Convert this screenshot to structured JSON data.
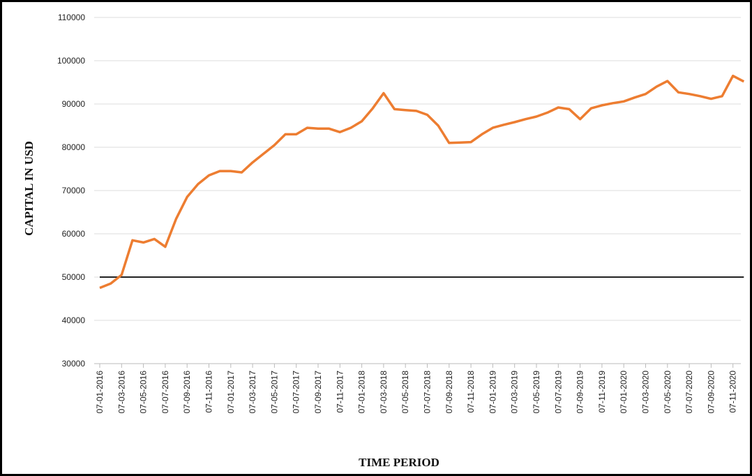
{
  "chart_data": {
    "type": "line",
    "y_label": "CAPITAL IN USD",
    "x_label": "TIME PERIOD",
    "categories": [
      "07-01-2016",
      null,
      "07-03-2016",
      null,
      "07-05-2016",
      null,
      "07-07-2016",
      null,
      "07-09-2016",
      null,
      "07-11-2016",
      null,
      "07-01-2017",
      null,
      "07-03-2017",
      null,
      "07-05-2017",
      null,
      "07-07-2017",
      null,
      "07-09-2017",
      null,
      "07-11-2017",
      null,
      "07-01-2018",
      null,
      "07-03-2018",
      null,
      "07-05-2018",
      null,
      "07-07-2018",
      null,
      "07-09-2018",
      null,
      "07-11-2018",
      null,
      "07-01-2019",
      null,
      "07-03-2019",
      null,
      "07-05-2019",
      null,
      "07-07-2019",
      null,
      "07-09-2019",
      null,
      "07-11-2019",
      null,
      "07-01-2020",
      null,
      "07-03-2020",
      null,
      "07-05-2020",
      null,
      "07-07-2020",
      null,
      "07-09-2020",
      null,
      "07-11-2020",
      null
    ],
    "series": [
      {
        "color": "#ed7d31",
        "values": [
          47500,
          48500,
          50500,
          58500,
          58000,
          58800,
          57000,
          63500,
          68500,
          71500,
          73500,
          74500,
          74500,
          74200,
          76500,
          78500,
          80500,
          83000,
          83000,
          84500,
          84300,
          84300,
          83500,
          84500,
          86000,
          89000,
          92500,
          88800,
          88600,
          88400,
          87500,
          85000,
          81000,
          81100,
          81200,
          83000,
          84500,
          85200,
          85800,
          86500,
          87100,
          88000,
          89200,
          88800,
          86500,
          89000,
          89700,
          90200,
          90600,
          91500,
          92300,
          94000,
          95300,
          92700,
          92300,
          91800,
          91200,
          91800,
          96500,
          95200
        ]
      },
      {
        "color": "#222222",
        "values": [
          50000,
          50000,
          50000,
          50000,
          50000,
          50000,
          50000,
          50000,
          50000,
          50000,
          50000,
          50000,
          50000,
          50000,
          50000,
          50000,
          50000,
          50000,
          50000,
          50000,
          50000,
          50000,
          50000,
          50000,
          50000,
          50000,
          50000,
          50000,
          50000,
          50000,
          50000,
          50000,
          50000,
          50000,
          50000,
          50000,
          50000,
          50000,
          50000,
          50000,
          50000,
          50000,
          50000,
          50000,
          50000,
          50000,
          50000,
          50000,
          50000,
          50000,
          50000,
          50000,
          50000,
          50000,
          50000,
          50000,
          50000,
          50000,
          50000,
          50000
        ]
      }
    ],
    "ylim": [
      30000,
      110000
    ],
    "yticks": [
      30000,
      40000,
      50000,
      60000,
      70000,
      80000,
      90000,
      100000,
      110000
    ],
    "grid": true
  }
}
